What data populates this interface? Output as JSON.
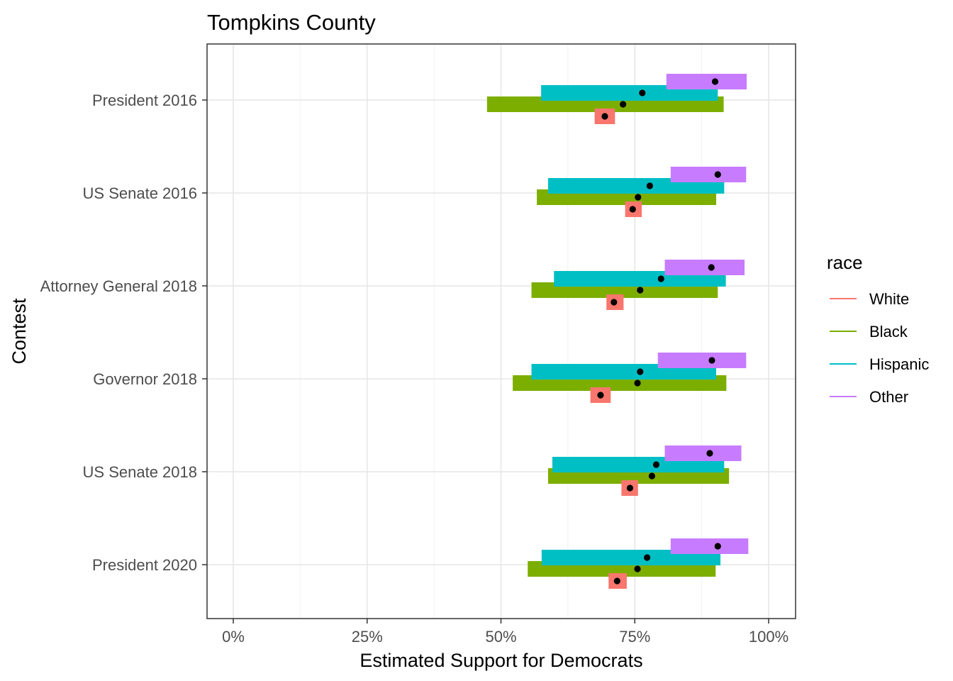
{
  "chart_data": {
    "type": "interval",
    "title": "Tompkins County",
    "xlabel": "Estimated Support for Democrats",
    "ylabel": "Contest",
    "xlim": [
      -0.05,
      1.05
    ],
    "x_ticks": [
      0,
      0.25,
      0.5,
      0.75,
      1.0
    ],
    "x_tick_labels": [
      "0%",
      "25%",
      "50%",
      "75%",
      "100%"
    ],
    "grid": true,
    "legend": {
      "title": "race",
      "position": "right",
      "entries": [
        "White",
        "Black",
        "Hispanic",
        "Other"
      ]
    },
    "colors": {
      "White": "#F8766D",
      "Black": "#7CAE00",
      "Hispanic": "#00BFC4",
      "Other": "#C77CFF",
      "point": "#000000"
    },
    "categories": [
      "President 2016",
      "US Senate 2016",
      "Attorney General 2018",
      "Governor 2018",
      "US Senate 2018",
      "President 2020"
    ],
    "series": [
      {
        "name": "White",
        "low": [
          0.675,
          0.732,
          0.697,
          0.667,
          0.725,
          0.701
        ],
        "high": [
          0.713,
          0.763,
          0.729,
          0.705,
          0.756,
          0.735
        ],
        "estimate": [
          0.694,
          0.746,
          0.711,
          0.686,
          0.741,
          0.717
        ]
      },
      {
        "name": "Black",
        "low": [
          0.474,
          0.567,
          0.557,
          0.522,
          0.588,
          0.55
        ],
        "high": [
          0.916,
          0.902,
          0.905,
          0.921,
          0.926,
          0.901
        ],
        "estimate": [
          0.728,
          0.756,
          0.76,
          0.755,
          0.782,
          0.755
        ]
      },
      {
        "name": "Hispanic",
        "low": [
          0.575,
          0.588,
          0.599,
          0.557,
          0.596,
          0.576
        ],
        "high": [
          0.905,
          0.917,
          0.92,
          0.902,
          0.917,
          0.91
        ],
        "estimate": [
          0.764,
          0.778,
          0.799,
          0.76,
          0.79,
          0.773
        ]
      },
      {
        "name": "Other",
        "low": [
          0.809,
          0.817,
          0.806,
          0.793,
          0.806,
          0.817
        ],
        "high": [
          0.959,
          0.958,
          0.955,
          0.958,
          0.949,
          0.962
        ],
        "estimate": [
          0.9,
          0.905,
          0.893,
          0.894,
          0.89,
          0.905
        ]
      }
    ]
  }
}
